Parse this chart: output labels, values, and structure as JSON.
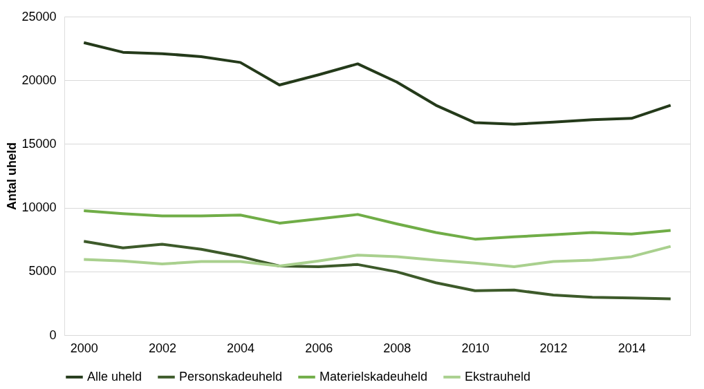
{
  "chart_data": {
    "type": "line",
    "ylabel": "Antal uheld",
    "x": [
      2000,
      2001,
      2002,
      2003,
      2004,
      2005,
      2006,
      2007,
      2008,
      2009,
      2010,
      2011,
      2012,
      2013,
      2014,
      2015
    ],
    "series": [
      {
        "name": "Alle uheld",
        "color": "#243a1a",
        "values": [
          22950,
          22200,
          22090,
          21860,
          21400,
          19630,
          20430,
          21290,
          19860,
          18040,
          16670,
          16550,
          16720,
          16900,
          17010,
          18040
        ]
      },
      {
        "name": "Personskadeuheld",
        "color": "#3d5a2a",
        "values": [
          7360,
          6850,
          7130,
          6740,
          6160,
          5420,
          5370,
          5540,
          4970,
          4110,
          3480,
          3540,
          3140,
          2970,
          2910,
          2850
        ]
      },
      {
        "name": "Materielskadeuheld",
        "color": "#70ad47",
        "values": [
          9760,
          9530,
          9360,
          9360,
          9420,
          8790,
          9130,
          9470,
          8730,
          8050,
          7530,
          7710,
          7880,
          8050,
          7930,
          8220
        ]
      },
      {
        "name": "Ekstrauheld",
        "color": "#a9d08e",
        "values": [
          5940,
          5820,
          5590,
          5770,
          5770,
          5420,
          5820,
          6280,
          6160,
          5880,
          5650,
          5370,
          5770,
          5880,
          6160,
          6960
        ]
      }
    ],
    "xlim": [
      1999.5,
      2015.5
    ],
    "xticks": [
      2000,
      2002,
      2004,
      2006,
      2008,
      2010,
      2012,
      2014
    ],
    "ylim": [
      0,
      25000
    ],
    "yticks": [
      0,
      5000,
      10000,
      15000,
      20000,
      25000
    ],
    "grid": "y",
    "legend": "bottom",
    "marker": "none",
    "line_style": "solid"
  }
}
